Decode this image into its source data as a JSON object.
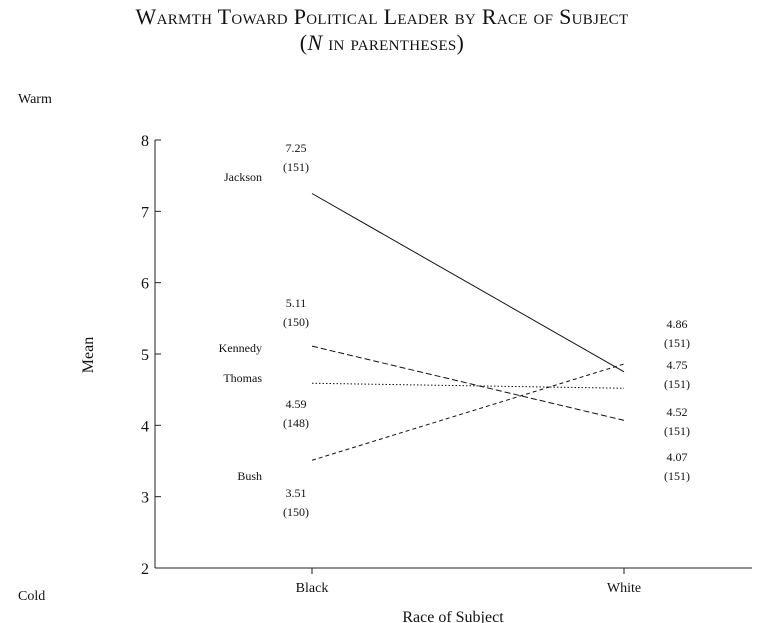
{
  "title_line1": "Warmth Toward Political Leader by Race of Subject",
  "title_line2_n": "N",
  "title_line2_rest": " in parentheses)",
  "warm_label": "Warm",
  "cold_label": "Cold",
  "chart_data": {
    "type": "line",
    "xlabel": "Race of Subject",
    "ylabel": "Mean",
    "categories": [
      "Black",
      "White"
    ],
    "ylim": [
      2,
      8
    ],
    "yticks": [
      2,
      3,
      4,
      5,
      6,
      7,
      8
    ],
    "grid": false,
    "series": [
      {
        "name": "Jackson",
        "values": [
          7.25,
          4.75
        ],
        "n": [
          "(151)",
          "(151)"
        ],
        "style": "solid"
      },
      {
        "name": "Kennedy",
        "values": [
          5.11,
          4.07
        ],
        "n": [
          "(150)",
          "(151)"
        ],
        "style": "dashed"
      },
      {
        "name": "Thomas",
        "values": [
          4.59,
          4.52
        ],
        "n": [
          "(148)",
          "(151)"
        ],
        "style": "dotted"
      },
      {
        "name": "Bush",
        "values": [
          3.51,
          4.86
        ],
        "n": [
          "(150)",
          "(151)"
        ],
        "style": "dashed-short"
      }
    ]
  }
}
